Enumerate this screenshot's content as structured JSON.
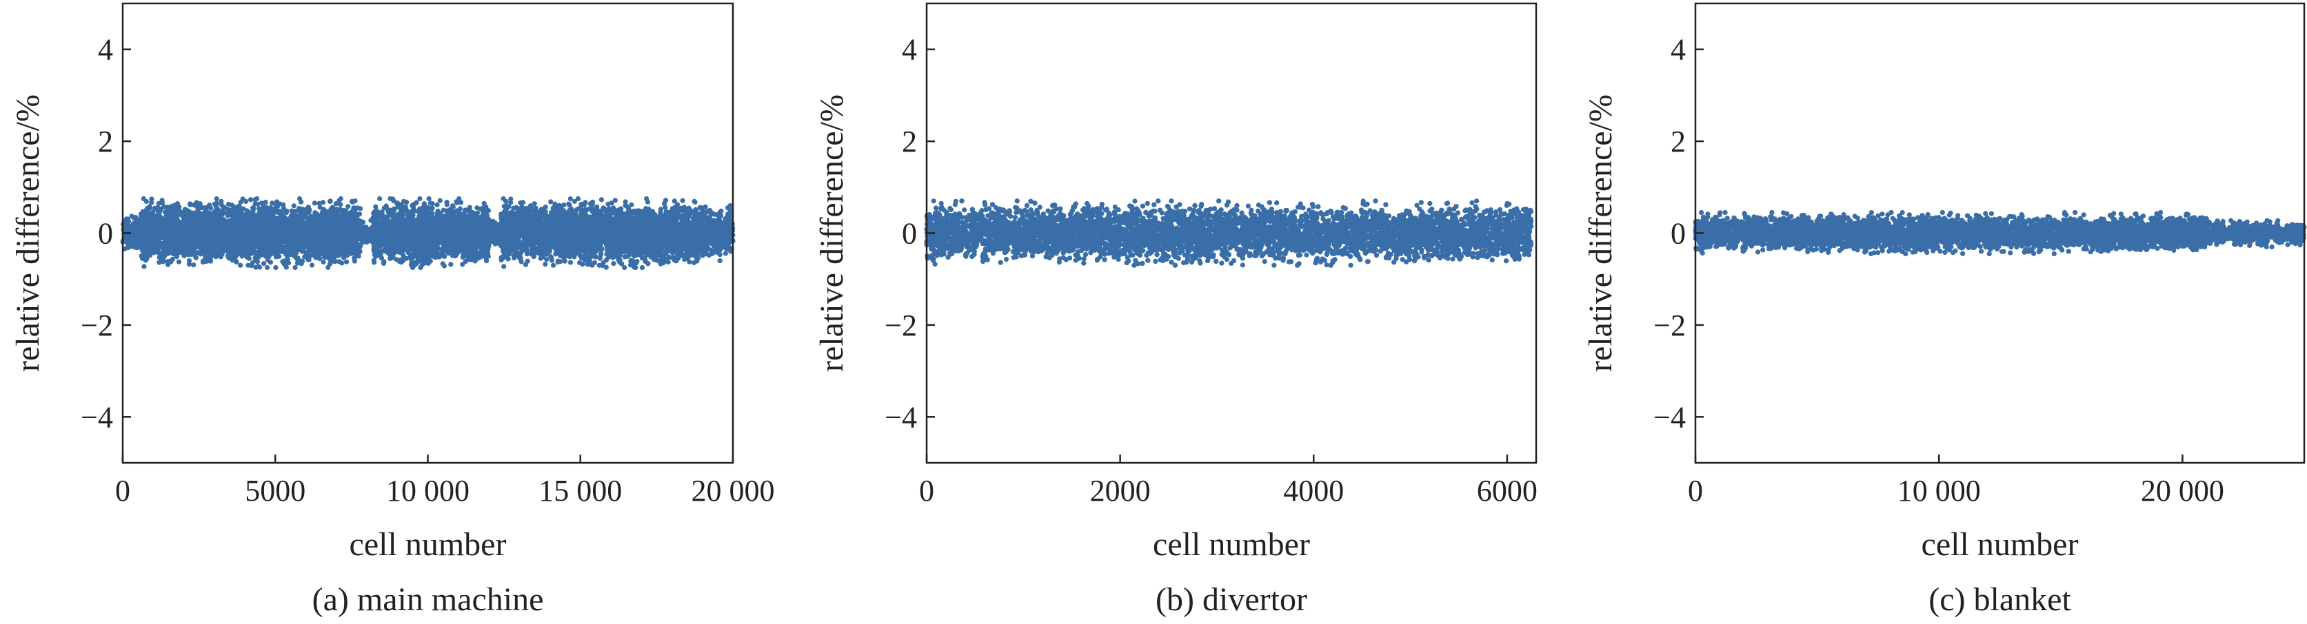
{
  "colors": {
    "points": "#3a6ea8",
    "axis": "#222222"
  },
  "chart_data": [
    {
      "type": "scatter",
      "caption": "(a) main machine",
      "xlabel": "cell number",
      "ylabel": "relative difference/%",
      "xlim": [
        0,
        20000
      ],
      "ylim": [
        -5,
        5
      ],
      "xticks": [
        {
          "value": 0,
          "label": "0"
        },
        {
          "value": 5000,
          "label": "5000"
        },
        {
          "value": 10000,
          "label": "10 000"
        },
        {
          "value": 15000,
          "label": "15 000"
        },
        {
          "value": 20000,
          "label": "20 000"
        }
      ],
      "yticks": [
        {
          "value": 4,
          "label": "4"
        },
        {
          "value": 2,
          "label": "2"
        },
        {
          "value": 0,
          "label": "0"
        },
        {
          "value": -2,
          "label": "−2"
        },
        {
          "value": -4,
          "label": "−4"
        }
      ],
      "grid": false,
      "series": [
        {
          "x_range": [
            0,
            20000
          ],
          "spread_bands": [
            {
              "x": [
                0,
                600
              ],
              "y_spread": 0.4
            },
            {
              "x": [
                600,
                7800
              ],
              "y_spread": 0.75
            },
            {
              "x": [
                7800,
                8200
              ],
              "y_spread": 0.3
            },
            {
              "x": [
                8200,
                12000
              ],
              "y_spread": 0.75
            },
            {
              "x": [
                12000,
                12400
              ],
              "y_spread": 0.35
            },
            {
              "x": [
                12400,
                19000
              ],
              "y_spread": 0.75
            },
            {
              "x": [
                19000,
                20000
              ],
              "y_spread": 0.6
            }
          ]
        }
      ]
    },
    {
      "type": "scatter",
      "caption": "(b) divertor",
      "xlabel": "cell number",
      "ylabel": "relative difference/%",
      "xlim": [
        0,
        6300
      ],
      "ylim": [
        -5,
        5
      ],
      "xticks": [
        {
          "value": 0,
          "label": "0"
        },
        {
          "value": 2000,
          "label": "2000"
        },
        {
          "value": 4000,
          "label": "4000"
        },
        {
          "value": 6000,
          "label": "6000"
        }
      ],
      "yticks": [
        {
          "value": 4,
          "label": "4"
        },
        {
          "value": 2,
          "label": "2"
        },
        {
          "value": 0,
          "label": "0"
        },
        {
          "value": -2,
          "label": "−2"
        },
        {
          "value": -4,
          "label": "−4"
        }
      ],
      "grid": false,
      "series": [
        {
          "x_range": [
            0,
            6250
          ],
          "spread_bands": [
            {
              "x": [
                0,
                6250
              ],
              "y_spread": 0.7
            }
          ]
        }
      ]
    },
    {
      "type": "scatter",
      "caption": "(c) blanket",
      "xlabel": "cell number",
      "ylabel": "relative difference/%",
      "xlim": [
        0,
        25000
      ],
      "ylim": [
        -5,
        5
      ],
      "xticks": [
        {
          "value": 0,
          "label": "0"
        },
        {
          "value": 10000,
          "label": "10 000"
        },
        {
          "value": 20000,
          "label": "20 000"
        }
      ],
      "yticks": [
        {
          "value": 4,
          "label": "4"
        },
        {
          "value": 2,
          "label": "2"
        },
        {
          "value": 0,
          "label": "0"
        },
        {
          "value": -2,
          "label": "−2"
        },
        {
          "value": -4,
          "label": "−4"
        }
      ],
      "grid": false,
      "series": [
        {
          "x_range": [
            0,
            25000
          ],
          "spread_bands": [
            {
              "x": [
                0,
                21000
              ],
              "y_spread": 0.45
            },
            {
              "x": [
                21000,
                25000
              ],
              "y_spread": 0.3
            }
          ]
        }
      ]
    }
  ]
}
